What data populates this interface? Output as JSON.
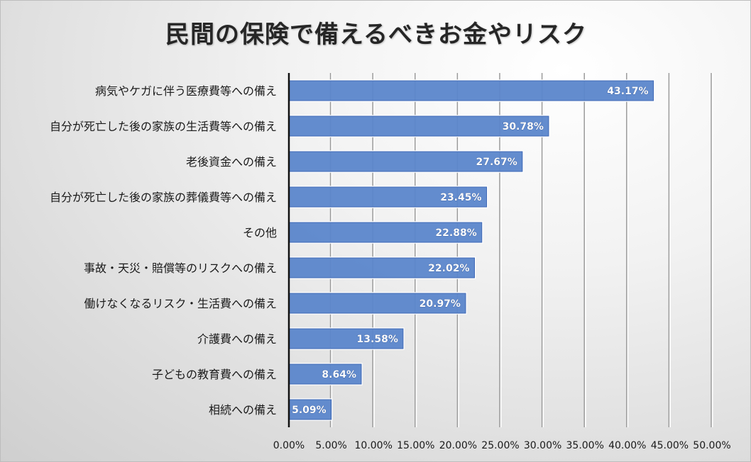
{
  "chart_data": {
    "type": "bar",
    "orientation": "horizontal",
    "title": "民間の保険で備えるべきお金やリスク",
    "categories": [
      "病気やケガに伴う医療費等への備え",
      "自分が死亡した後の家族の生活費等への備え",
      "老後資金への備え",
      "自分が死亡した後の家族の葬儀費等への備え",
      "その他",
      "事故・天災・賠償等のリスクへの備え",
      "働けなくなるリスク・生活費への備え",
      "介護費への備え",
      "子どもの教育費への備え",
      "相続への備え"
    ],
    "values": [
      43.17,
      30.78,
      27.67,
      23.45,
      22.88,
      22.02,
      20.97,
      13.58,
      8.64,
      5.09
    ],
    "data_labels": [
      "43.17%",
      "30.78%",
      "27.67%",
      "23.45%",
      "22.88%",
      "22.02%",
      "20.97%",
      "13.58%",
      "8.64%",
      "5.09%"
    ],
    "xlim": [
      0,
      50
    ],
    "x_ticks": [
      0,
      5,
      10,
      15,
      20,
      25,
      30,
      35,
      40,
      45,
      50
    ],
    "x_tick_labels": [
      "0.00%",
      "5.00%",
      "10.00%",
      "15.00%",
      "20.00%",
      "25.00%",
      "30.00%",
      "35.00%",
      "40.00%",
      "45.00%",
      "50.00%"
    ],
    "xlabel": "",
    "ylabel": "",
    "grid": "vertical",
    "legend": "none",
    "bar_color": "#5b86cb",
    "bar_border_color": "#3f68b5"
  }
}
